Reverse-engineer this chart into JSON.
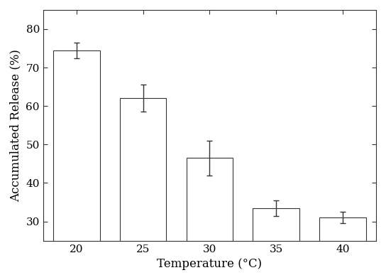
{
  "categories": [
    20,
    25,
    30,
    35,
    40
  ],
  "values": [
    74.5,
    62.0,
    46.5,
    33.5,
    31.0
  ],
  "errors": [
    2.0,
    3.5,
    4.5,
    2.0,
    1.5
  ],
  "xlabel": "Temperature (°C)",
  "ylabel": "Accumulated Release (%)",
  "ylim": [
    25,
    85
  ],
  "yticks": [
    30,
    40,
    50,
    60,
    70,
    80
  ],
  "bar_color": "#ffffff",
  "bar_edgecolor": "#333333",
  "bar_width": 0.7,
  "errorbar_color": "#333333",
  "errorbar_capsize": 3,
  "errorbar_linewidth": 1.0,
  "errorbar_capthick": 1.0,
  "background_color": "#ffffff",
  "xlabel_fontsize": 12,
  "ylabel_fontsize": 12,
  "tick_fontsize": 11,
  "spine_linewidth": 0.8,
  "font_family": "serif"
}
